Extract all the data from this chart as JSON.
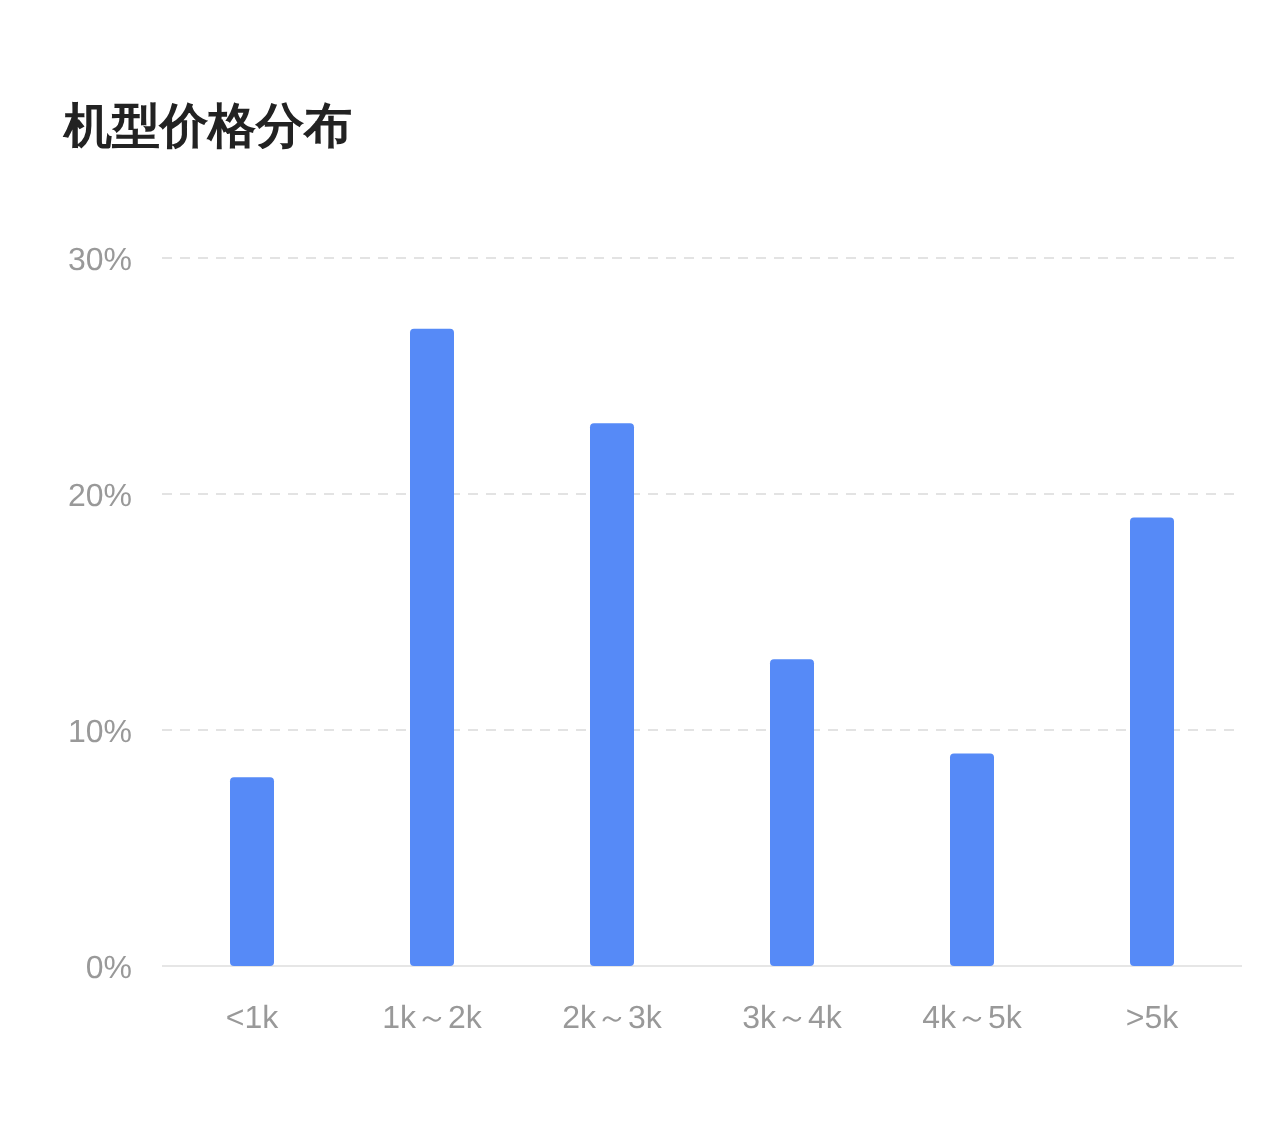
{
  "chart_data": {
    "type": "bar",
    "title": "机型价格分布",
    "categories": [
      "<1k",
      "1k～2k",
      "2k～3k",
      "3k～4k",
      "4k～5k",
      ">5k"
    ],
    "values": [
      8,
      27,
      23,
      13,
      9,
      19
    ],
    "color": "#568af7",
    "ylim": [
      0,
      30
    ],
    "yticks": [
      {
        "value": 0,
        "label": "0%"
      },
      {
        "value": 10,
        "label": "10%"
      },
      {
        "value": 20,
        "label": "20%"
      },
      {
        "value": 30,
        "label": "30%"
      }
    ],
    "grid": "y"
  }
}
